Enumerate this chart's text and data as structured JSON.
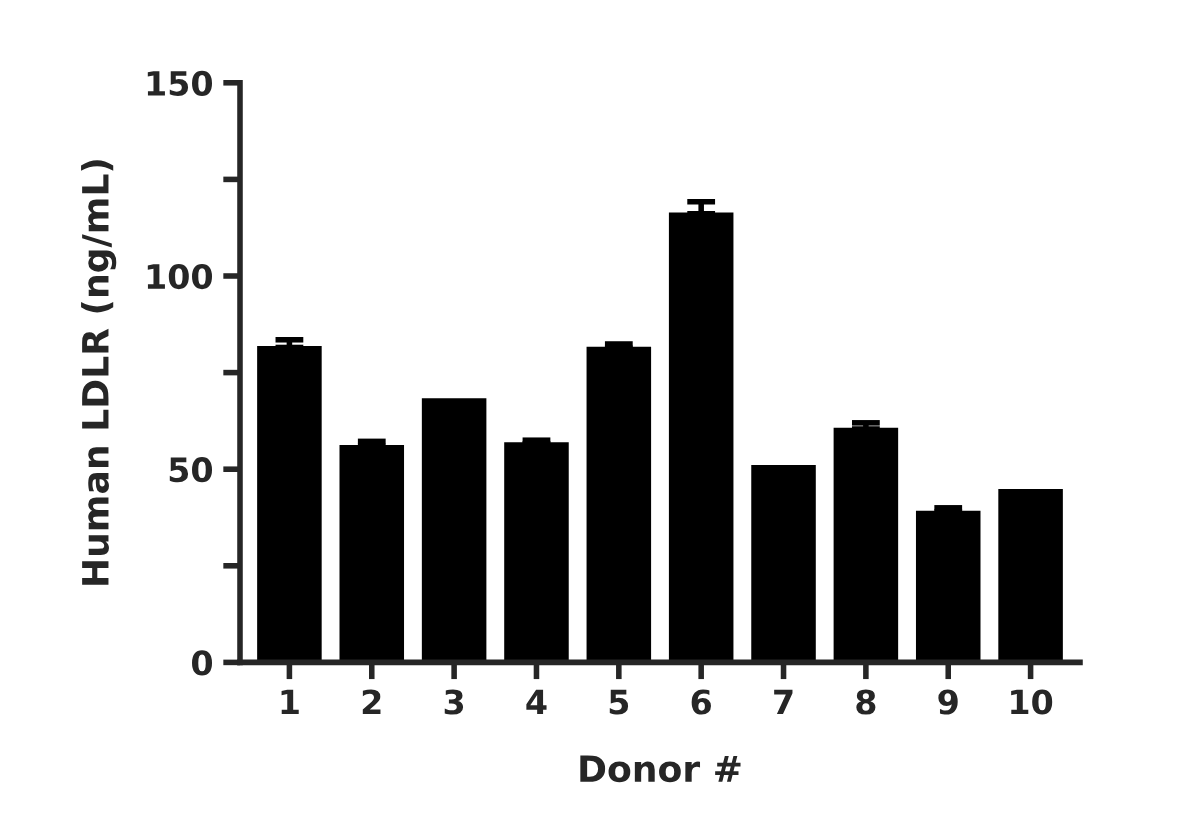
{
  "chart_data": {
    "type": "bar",
    "xlabel": "Donor #",
    "ylabel": "Human LDLR (ng/mL)",
    "categories": [
      "1",
      "2",
      "3",
      "4",
      "5",
      "6",
      "7",
      "8",
      "9",
      "10"
    ],
    "values": [
      81.5,
      55.9,
      68.0,
      56.6,
      81.3,
      116.1,
      50.7,
      60.4,
      38.9,
      44.5
    ],
    "errors": [
      2.0,
      1.3,
      null,
      0.9,
      1.1,
      3.1,
      null,
      1.6,
      1.1,
      null
    ],
    "color": "#000000",
    "ylim": [
      0,
      150
    ],
    "yticks": [
      0,
      50,
      100,
      150,
      {
        "value": 25,
        "label": null
      },
      {
        "value": 75,
        "label": null
      },
      {
        "value": 125,
        "label": null
      }
    ],
    "grid": false
  }
}
